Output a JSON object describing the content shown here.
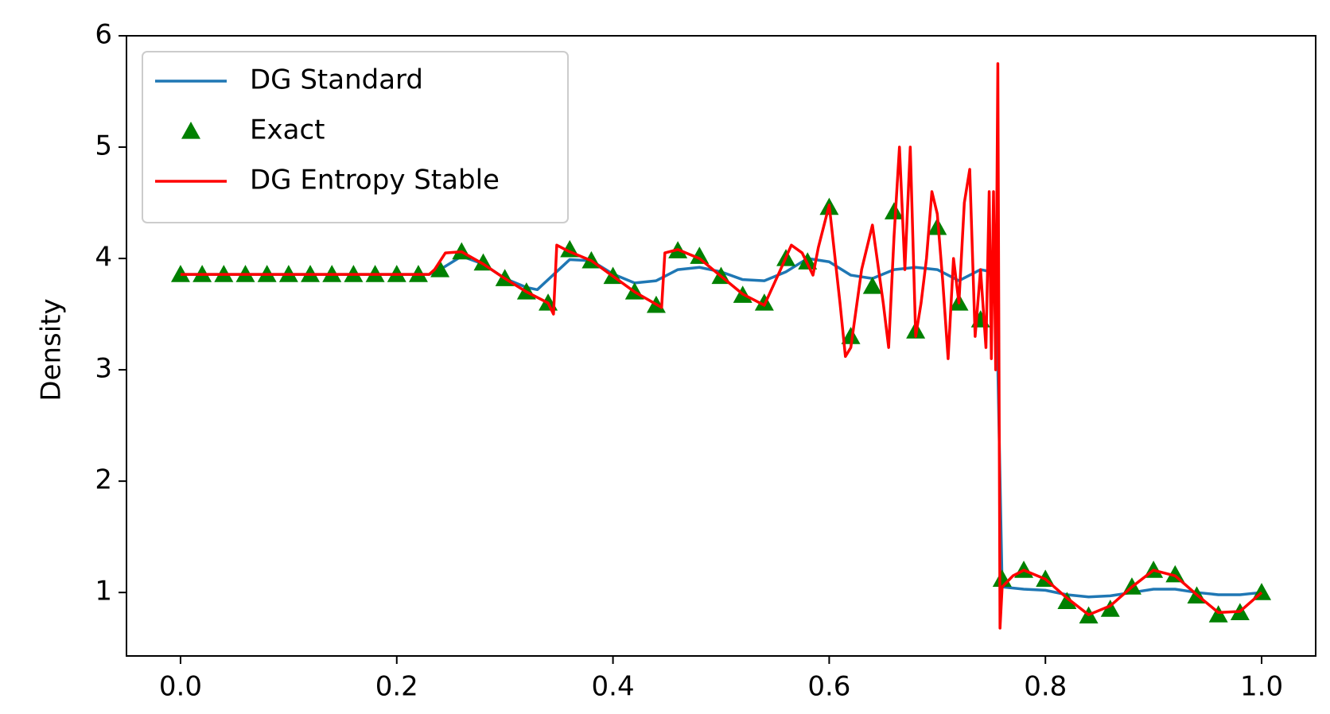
{
  "chart_data": {
    "type": "line",
    "y_label": "Density",
    "xlim": [
      -0.05,
      1.05
    ],
    "ylim": [
      0.43,
      6
    ],
    "xticks": [
      {
        "value": 0,
        "label": "0.0"
      },
      0.2,
      0.4,
      0.6,
      0.8,
      {
        "value": 1,
        "label": "1.0"
      }
    ],
    "yticks": [
      1,
      2,
      3,
      4,
      5,
      6
    ],
    "grid": false,
    "legend": "upper left",
    "series": [
      {
        "name": "DG Standard",
        "color": "#1f77b4",
        "style": "line",
        "x": [
          0,
          0.23,
          0.24,
          0.26,
          0.28,
          0.3,
          0.32,
          0.33,
          0.35,
          0.36,
          0.38,
          0.4,
          0.42,
          0.44,
          0.46,
          0.48,
          0.5,
          0.52,
          0.54,
          0.56,
          0.58,
          0.6,
          0.62,
          0.64,
          0.66,
          0.68,
          0.7,
          0.72,
          0.74,
          0.75,
          0.755,
          0.76,
          0.78,
          0.8,
          0.82,
          0.84,
          0.86,
          0.88,
          0.9,
          0.92,
          0.94,
          0.96,
          0.98,
          1
        ],
        "values": [
          3.857,
          3.857,
          3.9,
          4.02,
          3.95,
          3.82,
          3.74,
          3.72,
          3.9,
          3.99,
          3.98,
          3.86,
          3.78,
          3.8,
          3.9,
          3.92,
          3.88,
          3.81,
          3.8,
          3.88,
          4.0,
          3.97,
          3.85,
          3.82,
          3.9,
          3.92,
          3.9,
          3.8,
          3.9,
          3.88,
          3.5,
          1.05,
          1.03,
          1.02,
          0.98,
          0.96,
          0.97,
          1.0,
          1.03,
          1.03,
          1.0,
          0.98,
          0.98,
          1.0
        ]
      },
      {
        "name": "Exact",
        "color": "#008000",
        "style": "triangle",
        "x": [
          0,
          0.02,
          0.04,
          0.06,
          0.08,
          0.1,
          0.12,
          0.14,
          0.16,
          0.18,
          0.2,
          0.22,
          0.24,
          0.26,
          0.28,
          0.3,
          0.32,
          0.34,
          0.36,
          0.38,
          0.4,
          0.42,
          0.44,
          0.46,
          0.48,
          0.5,
          0.52,
          0.54,
          0.56,
          0.58,
          0.6,
          0.62,
          0.64,
          0.66,
          0.68,
          0.7,
          0.72,
          0.74,
          0.76,
          0.78,
          0.8,
          0.82,
          0.84,
          0.86,
          0.88,
          0.9,
          0.92,
          0.94,
          0.96,
          0.98,
          1
        ],
        "values": [
          3.857,
          3.857,
          3.857,
          3.857,
          3.857,
          3.857,
          3.857,
          3.857,
          3.857,
          3.857,
          3.857,
          3.857,
          3.9,
          4.06,
          3.96,
          3.82,
          3.7,
          3.6,
          4.08,
          3.98,
          3.84,
          3.7,
          3.58,
          4.07,
          4.02,
          3.84,
          3.67,
          3.6,
          4.0,
          3.97,
          4.46,
          3.3,
          3.75,
          4.42,
          3.35,
          4.28,
          3.6,
          3.45,
          1.12,
          1.2,
          1.12,
          0.92,
          0.79,
          0.85,
          1.05,
          1.2,
          1.16,
          0.97,
          0.8,
          0.82,
          1.0
        ]
      },
      {
        "name": "DG Entropy Stable",
        "color": "#ff0000",
        "style": "line",
        "x": [
          0,
          0.23,
          0.235,
          0.245,
          0.26,
          0.28,
          0.3,
          0.32,
          0.34,
          0.345,
          0.348,
          0.36,
          0.38,
          0.4,
          0.42,
          0.445,
          0.448,
          0.46,
          0.48,
          0.5,
          0.52,
          0.54,
          0.555,
          0.565,
          0.575,
          0.585,
          0.59,
          0.6,
          0.61,
          0.615,
          0.62,
          0.63,
          0.64,
          0.65,
          0.655,
          0.66,
          0.665,
          0.67,
          0.675,
          0.68,
          0.685,
          0.69,
          0.695,
          0.7,
          0.705,
          0.71,
          0.715,
          0.72,
          0.725,
          0.73,
          0.735,
          0.74,
          0.745,
          0.748,
          0.75,
          0.752,
          0.754,
          0.756,
          0.758,
          0.76,
          0.77,
          0.78,
          0.8,
          0.82,
          0.84,
          0.86,
          0.88,
          0.9,
          0.92,
          0.94,
          0.96,
          0.98,
          1
        ],
        "values": [
          3.857,
          3.857,
          3.9,
          4.05,
          4.06,
          3.95,
          3.82,
          3.7,
          3.6,
          3.5,
          4.12,
          4.06,
          3.98,
          3.84,
          3.7,
          3.56,
          4.05,
          4.08,
          4.0,
          3.84,
          3.68,
          3.58,
          3.9,
          4.12,
          4.05,
          3.85,
          4.1,
          4.48,
          3.6,
          3.12,
          3.2,
          3.9,
          4.3,
          3.6,
          3.2,
          4.2,
          5.0,
          3.9,
          5.0,
          3.3,
          3.6,
          4.0,
          4.6,
          4.4,
          3.8,
          3.1,
          4.0,
          3.6,
          4.5,
          4.8,
          3.3,
          3.9,
          3.2,
          4.6,
          3.1,
          4.6,
          3.0,
          5.75,
          0.68,
          1.05,
          1.15,
          1.2,
          1.12,
          0.95,
          0.8,
          0.88,
          1.05,
          1.2,
          1.15,
          0.98,
          0.82,
          0.83,
          1.0
        ]
      }
    ]
  }
}
